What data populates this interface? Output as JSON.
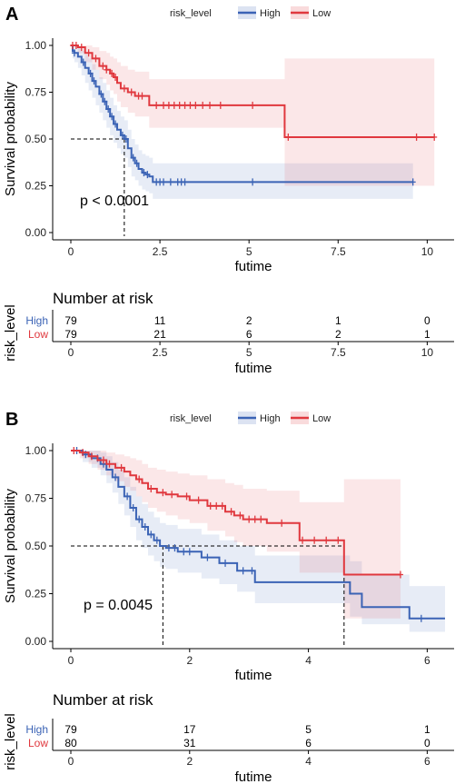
{
  "chart_data": [
    {
      "panel_label": "A",
      "type": "line",
      "legend": {
        "title": "risk_level",
        "items": [
          "High",
          "Low"
        ],
        "placement": "top"
      },
      "colors": {
        "High": "#3b63b5",
        "Low": "#e0383e"
      },
      "xlabel": "futime",
      "ylabel": "Survival probability",
      "xlim": [
        0,
        10.5
      ],
      "ylim": [
        0,
        1.05
      ],
      "x_ticks": [
        0,
        2.5,
        5,
        7.5,
        10
      ],
      "x_tick_labels": [
        "0",
        "2.5",
        "5",
        "7.5",
        "10"
      ],
      "y_ticks": [
        0,
        0.25,
        0.5,
        0.75,
        1
      ],
      "y_tick_labels": [
        "0.00",
        "0.25",
        "0.50",
        "0.75",
        "1.00"
      ],
      "annotation": "p < 0.0001",
      "median_lines": [
        1.5
      ],
      "series": [
        {
          "name": "High",
          "x": [
            0,
            0.05,
            0.1,
            0.2,
            0.3,
            0.4,
            0.5,
            0.6,
            0.7,
            0.8,
            0.9,
            1.0,
            1.1,
            1.2,
            1.3,
            1.4,
            1.5,
            1.6,
            1.7,
            1.8,
            1.9,
            2.0,
            2.1,
            2.2,
            2.3,
            9.6
          ],
          "y": [
            1.0,
            0.97,
            0.96,
            0.94,
            0.91,
            0.88,
            0.85,
            0.81,
            0.78,
            0.74,
            0.7,
            0.66,
            0.62,
            0.58,
            0.55,
            0.52,
            0.5,
            0.45,
            0.4,
            0.37,
            0.34,
            0.32,
            0.31,
            0.3,
            0.27,
            0.27
          ],
          "ci_upper": [
            1.0,
            1.0,
            1.0,
            0.99,
            0.97,
            0.95,
            0.93,
            0.9,
            0.87,
            0.83,
            0.8,
            0.76,
            0.72,
            0.68,
            0.65,
            0.62,
            0.6,
            0.55,
            0.5,
            0.47,
            0.44,
            0.42,
            0.41,
            0.4,
            0.37,
            0.37
          ],
          "ci_lower": [
            1.0,
            0.93,
            0.91,
            0.88,
            0.84,
            0.8,
            0.76,
            0.72,
            0.68,
            0.64,
            0.6,
            0.56,
            0.52,
            0.48,
            0.45,
            0.42,
            0.4,
            0.35,
            0.3,
            0.28,
            0.25,
            0.23,
            0.22,
            0.21,
            0.18,
            0.18
          ],
          "censor_x": [
            0.1,
            0.35,
            0.55,
            0.65,
            0.85,
            0.95,
            1.05,
            1.15,
            1.25,
            1.45,
            1.55,
            1.75,
            1.85,
            2.05,
            2.15,
            2.4,
            2.5,
            2.6,
            2.8,
            3.0,
            3.1,
            3.2,
            5.1,
            9.6
          ]
        },
        {
          "name": "Low",
          "x": [
            0,
            0.2,
            0.4,
            0.6,
            0.8,
            1.0,
            1.1,
            1.2,
            1.3,
            1.4,
            1.6,
            1.8,
            2.2,
            6.0,
            10.2
          ],
          "y": [
            1.0,
            0.99,
            0.96,
            0.93,
            0.89,
            0.87,
            0.85,
            0.83,
            0.8,
            0.77,
            0.75,
            0.73,
            0.68,
            0.51,
            0.51
          ],
          "ci_upper": [
            1.0,
            1.0,
            1.0,
            0.99,
            0.97,
            0.96,
            0.94,
            0.93,
            0.91,
            0.89,
            0.87,
            0.86,
            0.82,
            0.93,
            0.93
          ],
          "ci_lower": [
            1.0,
            0.96,
            0.91,
            0.87,
            0.82,
            0.79,
            0.76,
            0.74,
            0.7,
            0.67,
            0.64,
            0.62,
            0.56,
            0.25,
            0.25
          ],
          "censor_x": [
            0.05,
            0.15,
            0.3,
            0.5,
            0.7,
            0.9,
            1.0,
            1.15,
            1.25,
            1.5,
            1.7,
            1.9,
            2.0,
            2.4,
            2.6,
            2.75,
            2.9,
            3.05,
            3.2,
            3.35,
            3.5,
            3.7,
            3.9,
            4.2,
            5.1,
            6.1,
            9.7,
            10.2
          ]
        }
      ],
      "risk_table": {
        "title": "Number at risk",
        "ylabel": "risk_level",
        "xlabel": "futime",
        "times": [
          "0",
          "2.5",
          "5",
          "7.5",
          "10"
        ],
        "rows": [
          {
            "name": "High",
            "counts": [
              "79",
              "11",
              "2",
              "1",
              "0"
            ]
          },
          {
            "name": "Low",
            "counts": [
              "79",
              "21",
              "6",
              "2",
              "1"
            ]
          }
        ]
      }
    },
    {
      "panel_label": "B",
      "type": "line",
      "legend": {
        "title": "risk_level",
        "items": [
          "High",
          "Low"
        ],
        "placement": "top"
      },
      "colors": {
        "High": "#3b63b5",
        "Low": "#e0383e"
      },
      "xlabel": "futime",
      "ylabel": "Survival probability",
      "xlim": [
        0,
        6.3
      ],
      "ylim": [
        0,
        1.05
      ],
      "x_ticks": [
        0,
        2,
        4,
        6
      ],
      "x_tick_labels": [
        "0",
        "2",
        "4",
        "6"
      ],
      "y_ticks": [
        0,
        0.25,
        0.5,
        0.75,
        1
      ],
      "y_tick_labels": [
        "0.00",
        "0.25",
        "0.50",
        "0.75",
        "1.00"
      ],
      "annotation": "p = 0.0045",
      "median_lines": [
        1.55,
        4.6
      ],
      "series": [
        {
          "name": "High",
          "x": [
            0,
            0.2,
            0.35,
            0.5,
            0.6,
            0.7,
            0.8,
            0.9,
            1.0,
            1.1,
            1.2,
            1.3,
            1.4,
            1.5,
            1.6,
            1.8,
            2.2,
            2.5,
            2.8,
            3.1,
            3.8,
            4.7,
            4.9,
            5.7,
            6.3
          ],
          "y": [
            1.0,
            0.98,
            0.96,
            0.93,
            0.9,
            0.86,
            0.81,
            0.76,
            0.7,
            0.64,
            0.6,
            0.56,
            0.53,
            0.5,
            0.49,
            0.47,
            0.44,
            0.41,
            0.37,
            0.31,
            0.31,
            0.25,
            0.18,
            0.12,
            0.12
          ],
          "ci_upper": [
            1.0,
            1.0,
            1.0,
            0.99,
            0.97,
            0.94,
            0.9,
            0.86,
            0.81,
            0.76,
            0.72,
            0.68,
            0.65,
            0.62,
            0.61,
            0.59,
            0.56,
            0.53,
            0.5,
            0.45,
            0.45,
            0.42,
            0.35,
            0.29,
            0.29
          ],
          "ci_lower": [
            1.0,
            0.94,
            0.91,
            0.87,
            0.83,
            0.78,
            0.72,
            0.66,
            0.6,
            0.53,
            0.49,
            0.45,
            0.42,
            0.39,
            0.38,
            0.36,
            0.33,
            0.3,
            0.26,
            0.2,
            0.2,
            0.13,
            0.09,
            0.05,
            0.05
          ],
          "censor_x": [
            0.1,
            0.25,
            0.45,
            0.55,
            0.75,
            0.95,
            1.05,
            1.15,
            1.25,
            1.35,
            1.45,
            1.65,
            1.75,
            1.9,
            2.0,
            2.3,
            2.6,
            2.9,
            3.05,
            5.9
          ]
        },
        {
          "name": "Low",
          "x": [
            0,
            0.15,
            0.3,
            0.45,
            0.6,
            0.75,
            0.9,
            1.0,
            1.1,
            1.2,
            1.3,
            1.45,
            1.6,
            1.8,
            2.0,
            2.3,
            2.6,
            2.75,
            2.9,
            3.3,
            3.85,
            4.6,
            5.55
          ],
          "y": [
            1.0,
            0.99,
            0.97,
            0.95,
            0.93,
            0.91,
            0.89,
            0.87,
            0.85,
            0.83,
            0.8,
            0.78,
            0.77,
            0.76,
            0.74,
            0.71,
            0.68,
            0.66,
            0.64,
            0.62,
            0.53,
            0.35,
            0.35
          ],
          "ci_upper": [
            1.0,
            1.0,
            1.0,
            1.0,
            0.99,
            0.98,
            0.97,
            0.96,
            0.95,
            0.93,
            0.91,
            0.9,
            0.89,
            0.88,
            0.87,
            0.85,
            0.83,
            0.82,
            0.8,
            0.79,
            0.73,
            0.85,
            0.85
          ],
          "ci_lower": [
            1.0,
            0.96,
            0.93,
            0.9,
            0.87,
            0.84,
            0.81,
            0.79,
            0.76,
            0.73,
            0.7,
            0.68,
            0.66,
            0.64,
            0.62,
            0.58,
            0.55,
            0.52,
            0.5,
            0.47,
            0.36,
            0.12,
            0.12
          ],
          "censor_x": [
            0.05,
            0.2,
            0.35,
            0.55,
            0.65,
            0.85,
            1.15,
            1.35,
            1.55,
            1.7,
            1.95,
            2.15,
            2.35,
            2.45,
            2.55,
            2.7,
            2.85,
            3.0,
            3.1,
            3.2,
            3.55,
            3.9,
            4.1,
            4.3,
            4.5,
            5.55
          ]
        }
      ],
      "risk_table": {
        "title": "Number at risk",
        "ylabel": "risk_level",
        "xlabel": "futime",
        "times": [
          "0",
          "2",
          "4",
          "6"
        ],
        "rows": [
          {
            "name": "High",
            "counts": [
              "79",
              "17",
              "5",
              "1"
            ]
          },
          {
            "name": "Low",
            "counts": [
              "80",
              "31",
              "6",
              "0"
            ]
          }
        ]
      }
    }
  ]
}
